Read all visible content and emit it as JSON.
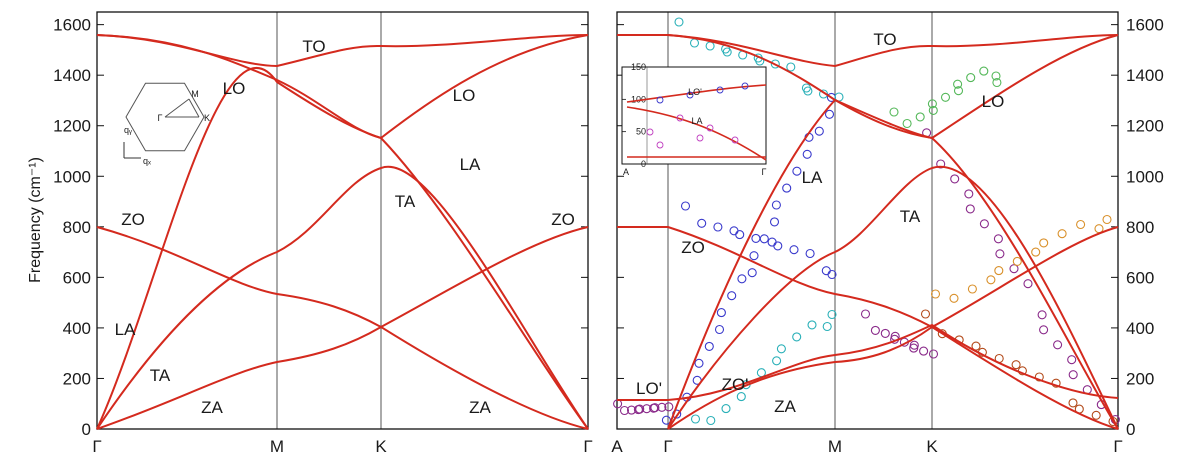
{
  "chart_data": [
    {
      "type": "line",
      "panel": "left",
      "ylabel": "Frequency (cm⁻¹)",
      "ylim": [
        0,
        1650
      ],
      "yticks": [
        "0",
        "200",
        "400",
        "600",
        "800",
        "1000",
        "1200",
        "1400",
        "1600"
      ],
      "xticks": [
        "Γ",
        "M",
        "K",
        "Γ"
      ],
      "band_labels": [
        "TO",
        "LO",
        "LO",
        "LA",
        "TA",
        "ZO",
        "ZO",
        "LA",
        "TA",
        "ZA",
        "ZA"
      ],
      "brillouin_zone_labels": [
        "Γ",
        "M",
        "K",
        "qᵧ",
        "qₓ"
      ],
      "series": [
        {
          "values": [
            0,
            1290,
            1160,
            0
          ]
        },
        {
          "values": [
            0,
            710,
            1030,
            0
          ]
        },
        {
          "values": [
            0,
            270,
            400,
            0
          ]
        },
        {
          "values": [
            800,
            540,
            400,
            800
          ]
        },
        {
          "values": [
            1570,
            1295,
            1160,
            1570
          ]
        },
        {
          "values": [
            1570,
            1440,
            1520,
            1570
          ]
        }
      ]
    },
    {
      "type": "line",
      "panel": "right",
      "ylim": [
        0,
        1650
      ],
      "yticks": [
        "0",
        "200",
        "400",
        "600",
        "800",
        "1000",
        "1200",
        "1400",
        "1600"
      ],
      "xticks": [
        "A",
        "Γ",
        "M",
        "K",
        "Γ"
      ],
      "band_labels": [
        "TO",
        "LO",
        "LA",
        "TA",
        "ZO",
        "LO'",
        "ZO'",
        "ZA"
      ],
      "series": [
        {
          "values": [
            0,
            1290,
            1160,
            0
          ]
        },
        {
          "values": [
            0,
            710,
            1030,
            0
          ]
        },
        {
          "values": [
            0,
            270,
            400,
            0
          ]
        },
        {
          "values": [
            800,
            540,
            400,
            800
          ]
        },
        {
          "values": [
            1570,
            1295,
            1160,
            1570
          ]
        },
        {
          "values": [
            1570,
            1440,
            1520,
            1570
          ]
        },
        {
          "values": [
            130,
            290,
            410,
            130
          ]
        }
      ],
      "inset": {
        "ylim": [
          0,
          150
        ],
        "yticks": [
          "0",
          "50",
          "100",
          "150"
        ],
        "xticks": [
          "A",
          "Γ"
        ],
        "band_labels": [
          "LO'",
          "LA"
        ]
      }
    }
  ]
}
